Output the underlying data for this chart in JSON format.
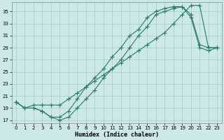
{
  "xlabel": "Humidex (Indice chaleur)",
  "ylabel": "",
  "background_color": "#cce8e8",
  "grid_color": "#aacccc",
  "line_color": "#2a7a6a",
  "xlim": [
    -0.5,
    23.5
  ],
  "ylim": [
    16.5,
    36.5
  ],
  "yticks": [
    17,
    19,
    21,
    23,
    25,
    27,
    29,
    31,
    33,
    35
  ],
  "xticks": [
    0,
    1,
    2,
    3,
    4,
    5,
    6,
    7,
    8,
    9,
    10,
    11,
    12,
    13,
    14,
    15,
    16,
    17,
    18,
    19,
    20,
    21,
    22,
    23
  ],
  "series1_x": [
    0,
    1,
    2,
    3,
    4,
    5,
    6,
    7,
    8,
    9,
    10,
    11,
    12,
    13,
    14,
    15,
    16,
    17,
    18,
    19,
    20,
    21,
    22,
    23
  ],
  "series1_y": [
    20.0,
    19.0,
    19.0,
    18.5,
    17.5,
    17.0,
    17.5,
    19.0,
    20.5,
    22.0,
    24.0,
    25.5,
    27.0,
    29.0,
    31.0,
    32.5,
    34.5,
    35.0,
    35.5,
    35.8,
    34.0,
    29.0,
    28.5,
    29.0
  ],
  "series2_x": [
    0,
    1,
    2,
    3,
    4,
    5,
    6,
    7,
    8,
    9,
    10,
    11,
    12,
    13,
    14,
    15,
    16,
    17,
    18,
    19,
    20,
    21,
    22,
    23
  ],
  "series2_y": [
    20.0,
    19.0,
    19.0,
    18.5,
    17.5,
    17.5,
    18.5,
    20.5,
    22.5,
    24.0,
    25.5,
    27.5,
    29.0,
    31.0,
    32.0,
    34.0,
    35.0,
    35.5,
    35.8,
    35.8,
    34.5,
    29.5,
    29.0,
    29.0
  ],
  "series3_x": [
    0,
    1,
    2,
    3,
    4,
    5,
    6,
    7,
    8,
    9,
    10,
    11,
    12,
    13,
    14,
    15,
    16,
    17,
    18,
    19,
    20,
    21,
    22,
    23
  ],
  "series3_y": [
    20.0,
    19.0,
    19.5,
    19.5,
    19.5,
    19.5,
    20.5,
    21.5,
    22.5,
    23.5,
    24.5,
    25.5,
    26.5,
    27.5,
    28.5,
    29.5,
    30.5,
    31.5,
    33.0,
    34.5,
    36.0,
    36.0,
    29.0,
    29.0
  ]
}
